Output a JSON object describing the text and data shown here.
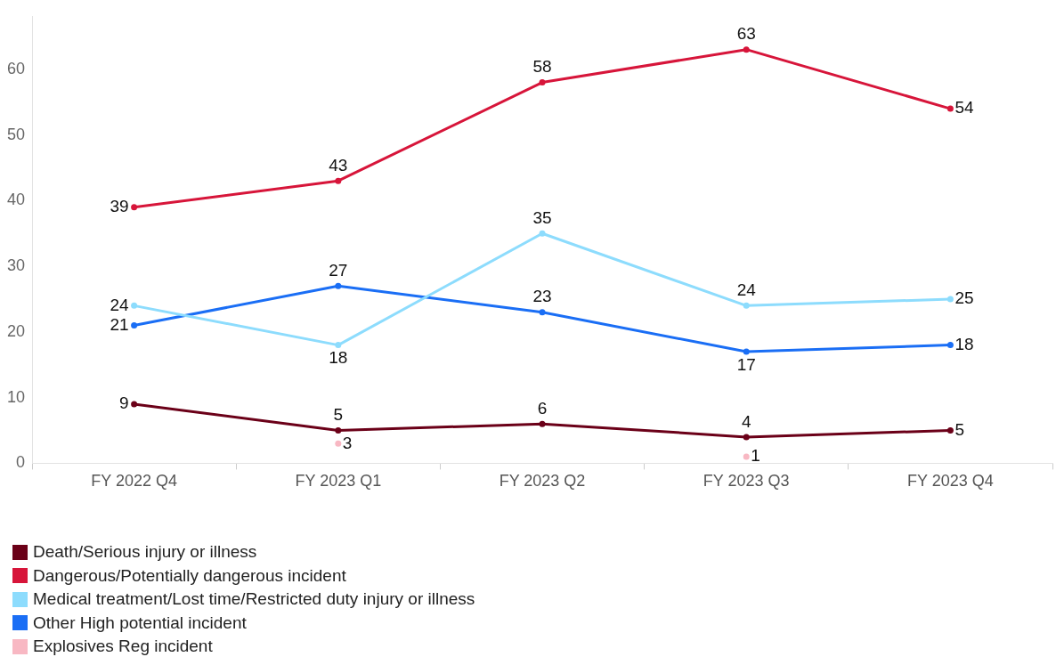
{
  "chart_data": {
    "type": "line",
    "categories": [
      "FY 2022 Q4",
      "FY 2023 Q1",
      "FY 2023 Q2",
      "FY 2023 Q3",
      "FY 2023 Q4"
    ],
    "series": [
      {
        "name": "Death/Serious injury or illness",
        "color": "#6b0018",
        "values": [
          9,
          5,
          6,
          4,
          5
        ]
      },
      {
        "name": "Dangerous/Potentially dangerous incident",
        "color": "#d7153a",
        "values": [
          39,
          43,
          58,
          63,
          54
        ]
      },
      {
        "name": "Medical treatment/Lost time/Restricted duty injury or illness",
        "color": "#8ddcfd",
        "values": [
          24,
          18,
          35,
          24,
          25
        ]
      },
      {
        "name": "Other High potential incident",
        "color": "#1a6ef5",
        "values": [
          21,
          27,
          23,
          17,
          18
        ]
      },
      {
        "name": "Explosives Reg incident",
        "type": "scatter",
        "color": "#f8b8c3",
        "values": [
          null,
          3,
          null,
          1,
          null
        ]
      }
    ],
    "ylim": [
      0,
      68
    ],
    "yticks": [
      0,
      10,
      20,
      30,
      40,
      50,
      60
    ],
    "grid": false,
    "legend": "bottom",
    "marker": "circle",
    "line_style": "solid",
    "data_labels": true
  }
}
